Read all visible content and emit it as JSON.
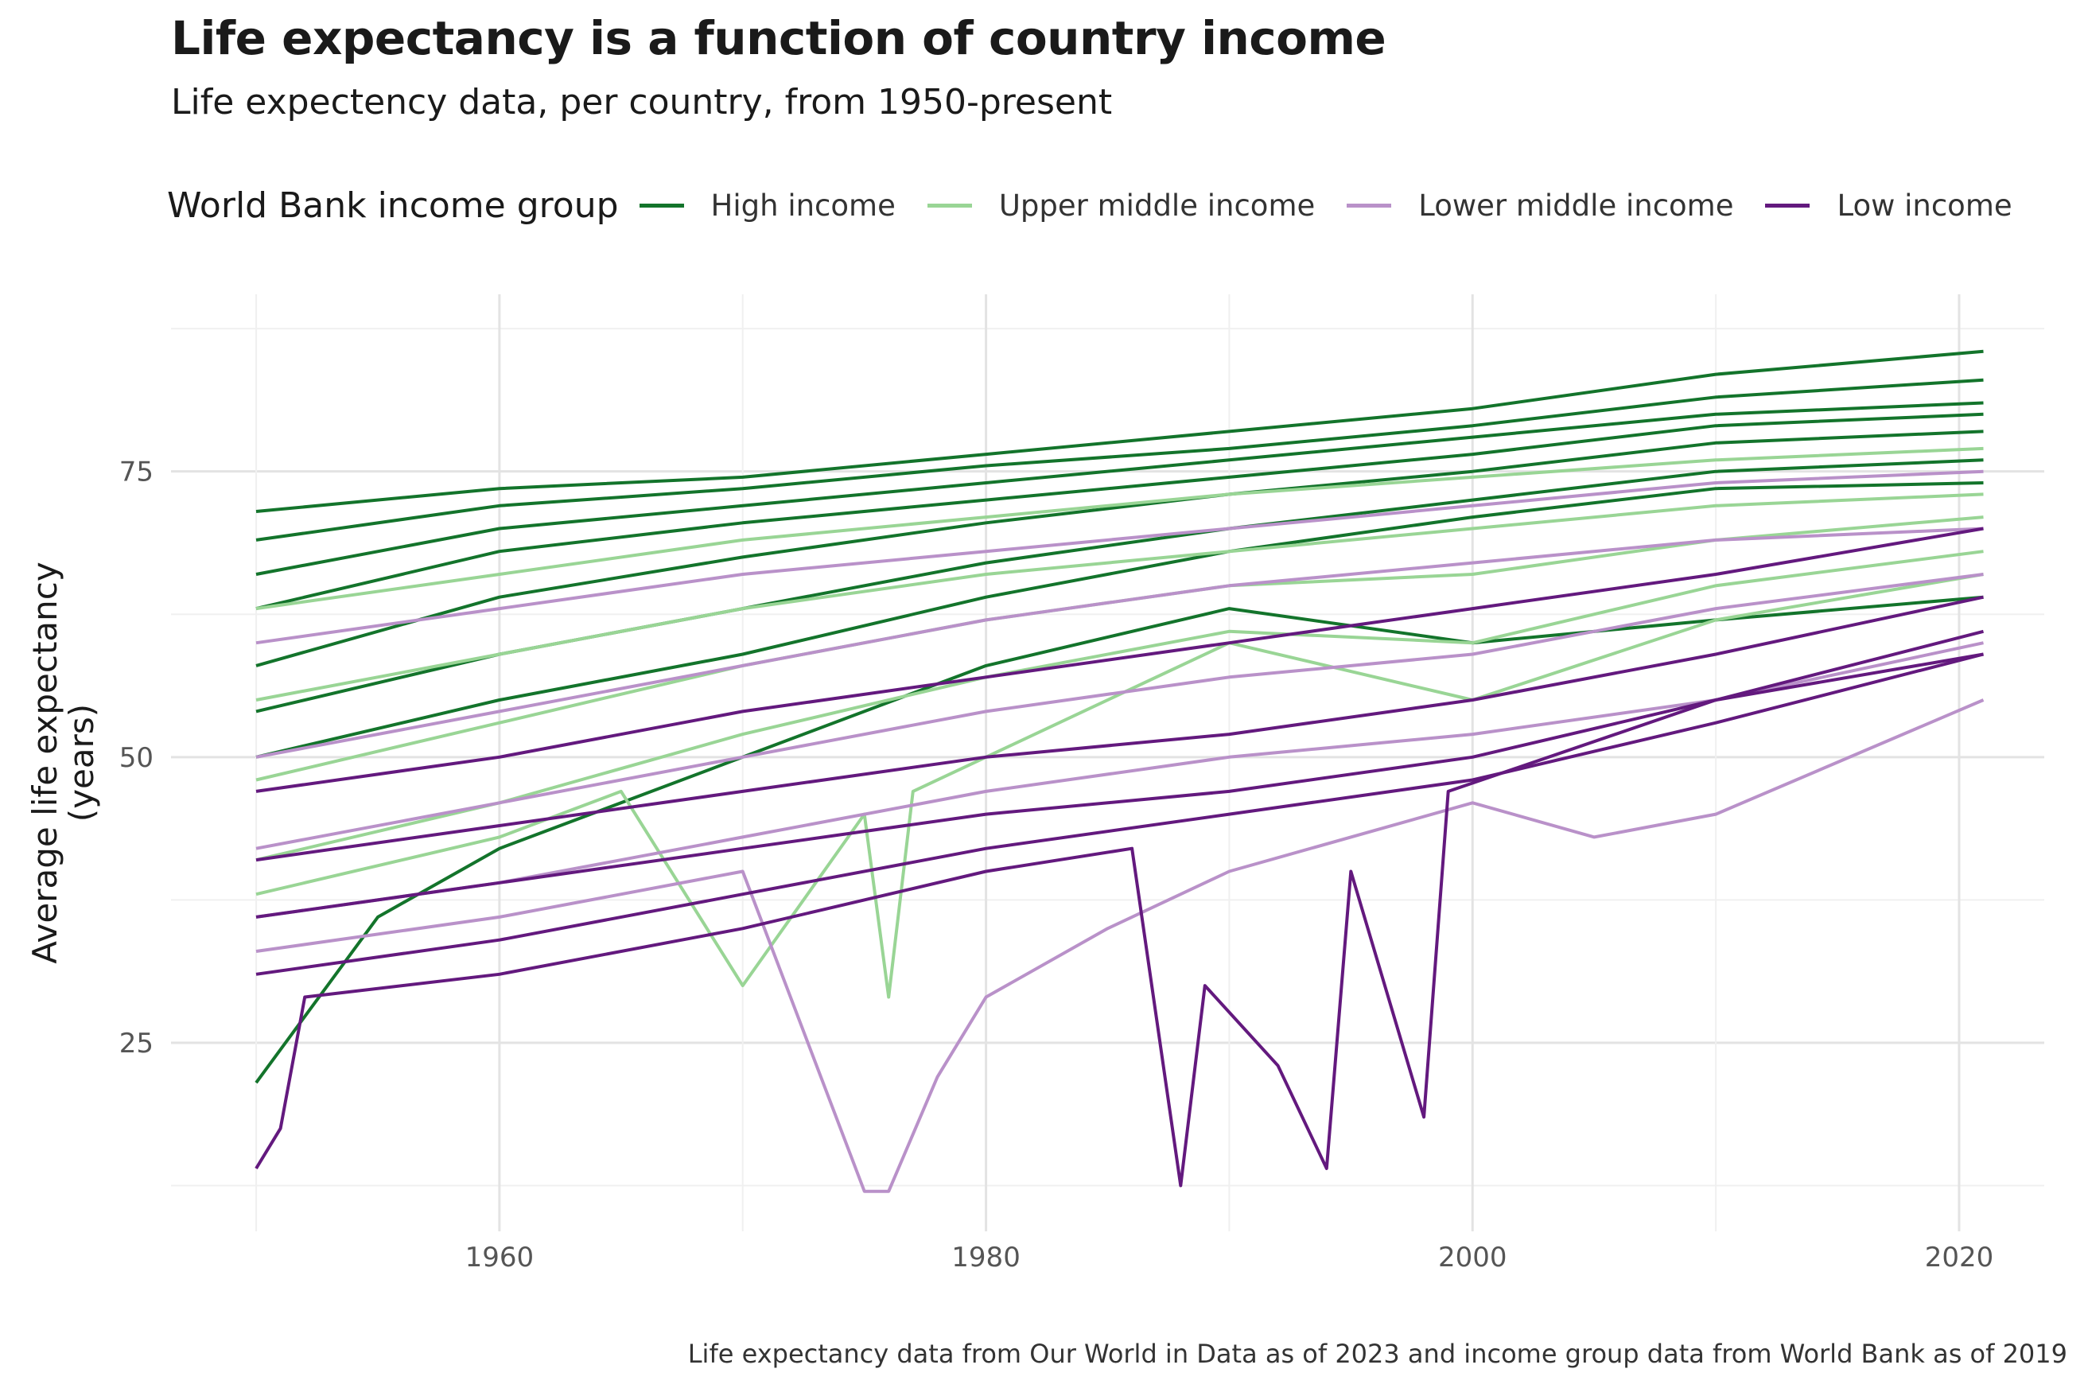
{
  "title": "Life expectancy is a function of country income",
  "subtitle": "Life expectency data, per country, from 1950-present",
  "caption": "Life expectancy data from Our World in Data as of 2023 and income group data from World Bank as of 2019",
  "legend": {
    "title": "World Bank income group",
    "items": [
      {
        "label": "High income",
        "color": "#13742b"
      },
      {
        "label": "Upper middle income",
        "color": "#99d595"
      },
      {
        "label": "Lower middle income",
        "color": "#b991c9"
      },
      {
        "label": "Low income",
        "color": "#63197e"
      }
    ]
  },
  "chart_data": {
    "type": "line",
    "title": "Life expectancy is a function of country income",
    "subtitle": "Life expectency data, per country, from 1950-present",
    "xlabel": "",
    "ylabel": "Average life expectancy\n(years)",
    "xlim": [
      1946.5,
      2023.5
    ],
    "ylim": [
      8.5,
      90.5
    ],
    "x_ticks": [
      1960,
      1980,
      2000,
      2020
    ],
    "y_ticks": [
      25,
      50,
      75
    ],
    "grid": true,
    "legend_position": "top",
    "series": [
      {
        "name": "High income",
        "color": "#13742b",
        "x": [
          1950,
          1960,
          1970,
          1980,
          1990,
          2000,
          2010,
          2021
        ],
        "y": [
          71.5,
          73.5,
          74.5,
          76.5,
          78.5,
          80.5,
          83.5,
          85.5
        ]
      },
      {
        "name": "High income",
        "color": "#13742b",
        "x": [
          1950,
          1960,
          1970,
          1980,
          1990,
          2000,
          2010,
          2021
        ],
        "y": [
          69,
          72,
          73.5,
          75.5,
          77,
          79,
          81.5,
          83
        ]
      },
      {
        "name": "High income",
        "color": "#13742b",
        "x": [
          1950,
          1960,
          1970,
          1980,
          1990,
          2000,
          2010,
          2021
        ],
        "y": [
          66,
          70,
          72,
          74,
          76,
          78,
          80,
          81
        ]
      },
      {
        "name": "High income",
        "color": "#13742b",
        "x": [
          1950,
          1960,
          1970,
          1980,
          1990,
          2000,
          2010,
          2021
        ],
        "y": [
          63,
          68,
          70.5,
          72.5,
          74.5,
          76.5,
          79,
          80
        ]
      },
      {
        "name": "High income",
        "color": "#13742b",
        "x": [
          1950,
          1960,
          1970,
          1980,
          1990,
          2000,
          2010,
          2021
        ],
        "y": [
          58,
          64,
          67.5,
          70.5,
          73,
          75,
          77.5,
          78.5
        ]
      },
      {
        "name": "High income",
        "color": "#13742b",
        "x": [
          1950,
          1960,
          1970,
          1980,
          1990,
          2000,
          2010,
          2021
        ],
        "y": [
          54,
          59,
          63,
          67,
          70,
          72.5,
          75,
          76
        ]
      },
      {
        "name": "High income",
        "color": "#13742b",
        "x": [
          1950,
          1960,
          1970,
          1980,
          1990,
          2000,
          2010,
          2021
        ],
        "y": [
          50,
          55,
          59,
          64,
          68,
          71,
          73.5,
          74
        ]
      },
      {
        "name": "High income",
        "color": "#13742b",
        "x": [
          1950,
          1955,
          1960,
          1970,
          1980,
          1990,
          2000,
          2010,
          2021
        ],
        "y": [
          21.5,
          36,
          42,
          50,
          58,
          63,
          60,
          62,
          64
        ]
      },
      {
        "name": "Upper middle income",
        "color": "#99d595",
        "x": [
          1950,
          1960,
          1970,
          1980,
          1990,
          2000,
          2010,
          2021
        ],
        "y": [
          63,
          66,
          69,
          71,
          73,
          74.5,
          76,
          77
        ]
      },
      {
        "name": "Upper middle income",
        "color": "#99d595",
        "x": [
          1950,
          1960,
          1970,
          1980,
          1990,
          2000,
          2010,
          2021
        ],
        "y": [
          55,
          59,
          63,
          66,
          68,
          70,
          72,
          73
        ]
      },
      {
        "name": "Upper middle income",
        "color": "#99d595",
        "x": [
          1950,
          1960,
          1970,
          1980,
          1990,
          2000,
          2010,
          2021
        ],
        "y": [
          48,
          53,
          58,
          62,
          65,
          66,
          69,
          71
        ]
      },
      {
        "name": "Upper middle income",
        "color": "#99d595",
        "x": [
          1950,
          1960,
          1970,
          1980,
          1990,
          2000,
          2010,
          2021
        ],
        "y": [
          41,
          46,
          52,
          57,
          61,
          60,
          65,
          68
        ]
      },
      {
        "name": "Upper middle income",
        "color": "#99d595",
        "x": [
          1950,
          1960,
          1965,
          1970,
          1975,
          1976,
          1977,
          1980,
          1990,
          2000,
          2010,
          2021
        ],
        "y": [
          38,
          43,
          47,
          30,
          45,
          29,
          47,
          50,
          60,
          55,
          62,
          66
        ]
      },
      {
        "name": "Lower middle income",
        "color": "#b991c9",
        "x": [
          1950,
          1960,
          1970,
          1980,
          1990,
          2000,
          2010,
          2021
        ],
        "y": [
          60,
          63,
          66,
          68,
          70,
          72,
          74,
          75
        ]
      },
      {
        "name": "Lower middle income",
        "color": "#b991c9",
        "x": [
          1950,
          1960,
          1970,
          1980,
          1990,
          2000,
          2010,
          2021
        ],
        "y": [
          50,
          54,
          58,
          62,
          65,
          67,
          69,
          70
        ]
      },
      {
        "name": "Lower middle income",
        "color": "#b991c9",
        "x": [
          1950,
          1960,
          1970,
          1980,
          1990,
          2000,
          2010,
          2021
        ],
        "y": [
          42,
          46,
          50,
          54,
          57,
          59,
          63,
          66
        ]
      },
      {
        "name": "Lower middle income",
        "color": "#b991c9",
        "x": [
          1950,
          1960,
          1970,
          1980,
          1990,
          2000,
          2010,
          2021
        ],
        "y": [
          36,
          39,
          43,
          47,
          50,
          52,
          55,
          60
        ]
      },
      {
        "name": "Lower middle income",
        "color": "#b991c9",
        "x": [
          1950,
          1960,
          1970,
          1975,
          1976,
          1978,
          1980,
          1985,
          1990,
          2000,
          2005,
          2010,
          2021
        ],
        "y": [
          33,
          36,
          40,
          12,
          12,
          22,
          29,
          35,
          40,
          46,
          43,
          45,
          55
        ]
      },
      {
        "name": "Low income",
        "color": "#63197e",
        "x": [
          1950,
          1960,
          1970,
          1980,
          1990,
          2000,
          2010,
          2021
        ],
        "y": [
          47,
          50,
          54,
          57,
          60,
          63,
          66,
          70
        ]
      },
      {
        "name": "Low income",
        "color": "#63197e",
        "x": [
          1950,
          1960,
          1970,
          1980,
          1990,
          2000,
          2010,
          2021
        ],
        "y": [
          41,
          44,
          47,
          50,
          52,
          55,
          59,
          64
        ]
      },
      {
        "name": "Low income",
        "color": "#63197e",
        "x": [
          1950,
          1960,
          1970,
          1980,
          1990,
          2000,
          2010,
          2021
        ],
        "y": [
          36,
          39,
          42,
          45,
          47,
          50,
          55,
          61
        ]
      },
      {
        "name": "Low income",
        "color": "#63197e",
        "x": [
          1950,
          1960,
          1970,
          1980,
          1990,
          2000,
          2010,
          2021
        ],
        "y": [
          31,
          34,
          38,
          42,
          45,
          48,
          53,
          59
        ]
      },
      {
        "name": "Low income",
        "color": "#63197e",
        "x": [
          1950,
          1951,
          1952,
          1960,
          1970,
          1980,
          1986,
          1988,
          1989,
          1992,
          1994,
          1995,
          1998,
          1999,
          2010,
          2021
        ],
        "y": [
          14,
          17.5,
          29,
          31,
          35,
          40,
          42,
          12.5,
          30,
          23,
          14,
          40,
          18.5,
          47,
          55,
          59
        ]
      }
    ]
  }
}
